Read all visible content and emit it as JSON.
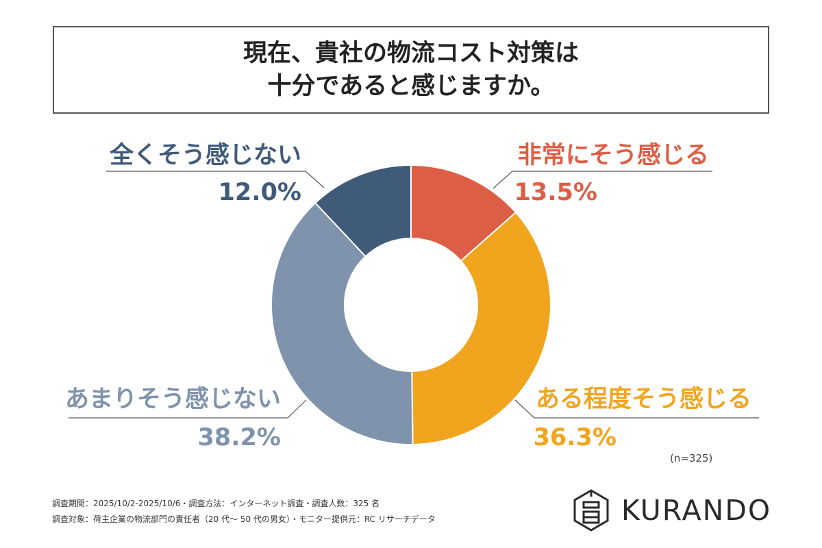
{
  "title": {
    "line1": "現在、貴社の物流コスト対策は",
    "line2": "十分であると感じますか。"
  },
  "chart_data": {
    "type": "pie",
    "donut": true,
    "categories": [
      "非常にそう感じる",
      "ある程度そう感じる",
      "あまりそう感じない",
      "全くそう感じない"
    ],
    "values": [
      13.5,
      36.3,
      38.2,
      12.0
    ],
    "value_labels": [
      "13.5%",
      "36.3%",
      "38.2%",
      "12.0%"
    ],
    "colors": [
      "#DC5F45",
      "#F1A51F",
      "#7F93AC",
      "#405B7A"
    ],
    "sample_size": "(n=325)"
  },
  "footnotes": {
    "line1": "調査期間：2025/10/2-2025/10/6・調査方法：インターネット調査・調査人数：325 名",
    "line2": "調査対象：荷主企業の物流部門の責任者（20 代～ 50 代の男女）・モニター提供元：RC リサーチデータ"
  },
  "logo": {
    "text": "KURANDO",
    "icon": "storehouse-icon"
  }
}
